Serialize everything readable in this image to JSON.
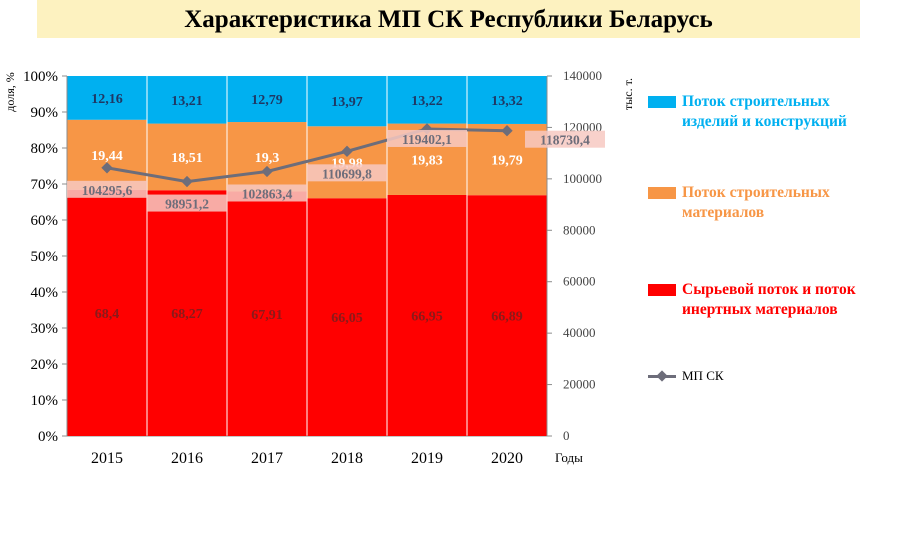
{
  "title": "Характеристика МП СК Республики Беларусь",
  "colors": {
    "raw": "#ff0000",
    "materials": "#f79646",
    "products": "#00b0f0",
    "line": "#6d6d7a",
    "title_bg": "#fdf2c0"
  },
  "chart_data": {
    "type": "bar",
    "stacked": true,
    "categories": [
      "2015",
      "2016",
      "2017",
      "2018",
      "2019",
      "2020"
    ],
    "xlabel": "Годы",
    "ylabel": "доля, %",
    "ylabel_right": "тыс. т.",
    "ylim": [
      0,
      100
    ],
    "yticks": [
      "0%",
      "10%",
      "20%",
      "30%",
      "40%",
      "50%",
      "60%",
      "70%",
      "80%",
      "90%",
      "100%"
    ],
    "ylim_right": [
      0,
      140000
    ],
    "yticks_right": [
      "0",
      "20000",
      "40000",
      "60000",
      "80000",
      "100000",
      "120000",
      "140000"
    ],
    "series": [
      {
        "name": "Сырьевой поток и поток инертных материалов",
        "key": "raw",
        "values": [
          68.4,
          68.27,
          67.91,
          66.05,
          66.95,
          66.89
        ],
        "labels": [
          "68,4",
          "68,27",
          "67,91",
          "66,05",
          "66,95",
          "66,89"
        ]
      },
      {
        "name": "Поток строительных материалов",
        "key": "materials",
        "values": [
          19.44,
          18.51,
          19.3,
          19.98,
          19.83,
          19.79
        ],
        "labels": [
          "19,44",
          "18,51",
          "19,3",
          "19,98",
          "19,83",
          "19,79"
        ]
      },
      {
        "name": "Поток строительных изделий и конструкций",
        "key": "products",
        "values": [
          12.16,
          13.21,
          12.79,
          13.97,
          13.22,
          13.32
        ],
        "labels": [
          "12,16",
          "13,21",
          "12,79",
          "13,97",
          "13,22",
          "13,32"
        ]
      }
    ],
    "line_series": {
      "name": "МП СК",
      "axis": "right",
      "values": [
        104295.6,
        98951.2,
        102863.4,
        110699.8,
        119402.1,
        118730.4
      ],
      "labels": [
        "104295,6",
        "98951,2",
        "102863,4",
        "110699,8",
        "119402,1",
        "118730,4"
      ]
    },
    "legend_position": "right"
  }
}
